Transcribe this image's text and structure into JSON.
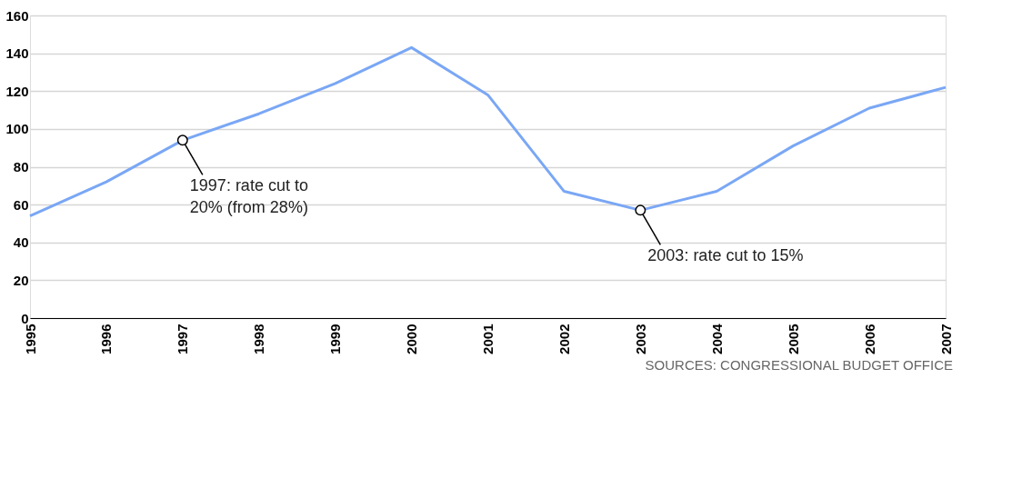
{
  "chart_data": {
    "type": "line",
    "categories": [
      "1995",
      "1996",
      "1997",
      "1998",
      "1999",
      "2000",
      "2001",
      "2002",
      "2003",
      "2004",
      "2005",
      "2006",
      "2007"
    ],
    "series": [
      {
        "color": "#7aa7f5",
        "values": [
          54,
          72,
          94,
          108,
          124,
          143,
          118,
          67,
          57,
          67,
          91,
          111,
          122
        ]
      }
    ],
    "ylim": [
      0,
      160
    ],
    "yticks": [
      0,
      20,
      40,
      60,
      80,
      100,
      120,
      140,
      160
    ],
    "grid": "y",
    "marker": "none",
    "line_style": "solid",
    "annotations": [
      {
        "text": "1997: rate cut to 20% (from 28%)",
        "x": "1997",
        "y": 94
      },
      {
        "text": "2003: rate cut to 15%",
        "x": "2003",
        "y": 57
      },
      "SOURCES: CONGRESSIONAL BUDGET OFFICE"
    ]
  }
}
